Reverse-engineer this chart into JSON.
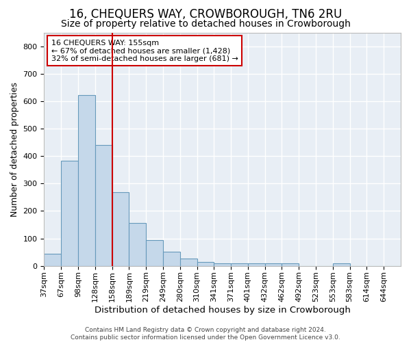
{
  "title1": "16, CHEQUERS WAY, CROWBOROUGH, TN6 2RU",
  "title2": "Size of property relative to detached houses in Crowborough",
  "xlabel": "Distribution of detached houses by size in Crowborough",
  "ylabel": "Number of detached properties",
  "categories": [
    "37sqm",
    "67sqm",
    "98sqm",
    "128sqm",
    "158sqm",
    "189sqm",
    "219sqm",
    "249sqm",
    "280sqm",
    "310sqm",
    "341sqm",
    "371sqm",
    "401sqm",
    "432sqm",
    "462sqm",
    "492sqm",
    "523sqm",
    "553sqm",
    "583sqm",
    "614sqm",
    "644sqm"
  ],
  "values": [
    44,
    383,
    622,
    440,
    268,
    155,
    95,
    52,
    27,
    15,
    10,
    10,
    10,
    10,
    9,
    0,
    0,
    9,
    0,
    0,
    0
  ],
  "bar_color": "#c5d8ea",
  "bar_edgecolor": "#6699bb",
  "bar_linewidth": 0.8,
  "vline_color": "#cc0000",
  "vline_position": 4,
  "annotation_text": "16 CHEQUERS WAY: 155sqm\n← 67% of detached houses are smaller (1,428)\n32% of semi-detached houses are larger (681) →",
  "annotation_box_facecolor": "white",
  "annotation_box_edgecolor": "#cc0000",
  "ylim": [
    0,
    850
  ],
  "yticks": [
    0,
    100,
    200,
    300,
    400,
    500,
    600,
    700,
    800
  ],
  "fig_background": "white",
  "plot_background": "#e8eef5",
  "grid_color": "white",
  "footnote": "Contains HM Land Registry data © Crown copyright and database right 2024.\nContains public sector information licensed under the Open Government Licence v3.0.",
  "title1_fontsize": 12,
  "title2_fontsize": 10,
  "xlabel_fontsize": 9.5,
  "ylabel_fontsize": 9,
  "tick_fontsize": 8,
  "annotation_fontsize": 8,
  "footnote_fontsize": 6.5
}
